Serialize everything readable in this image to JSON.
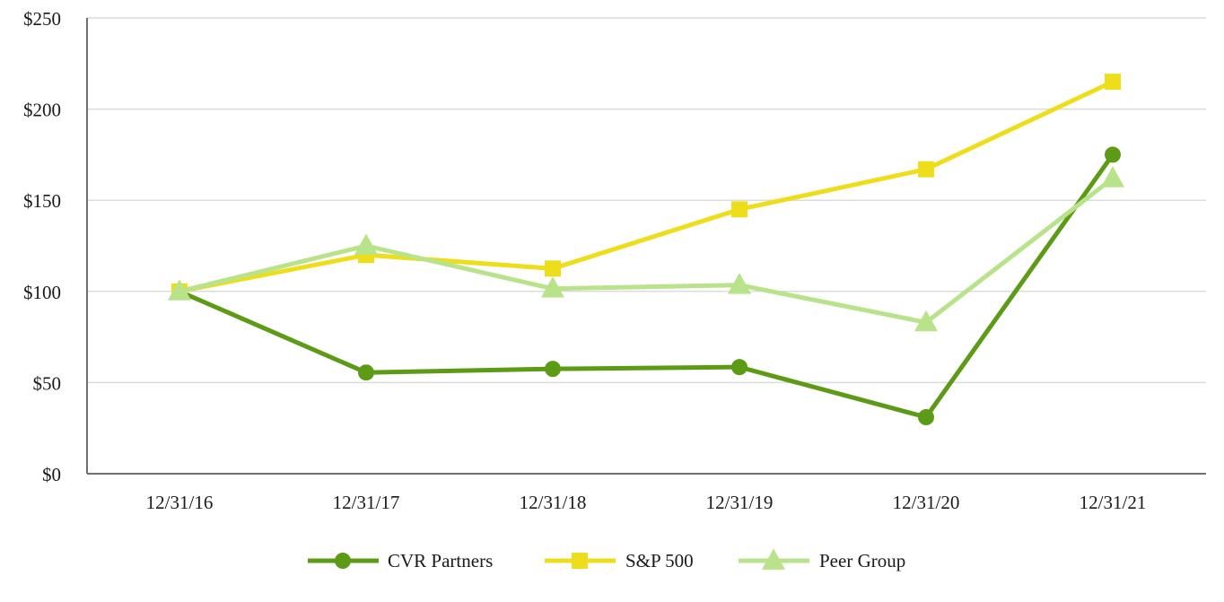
{
  "chart_data": {
    "type": "line",
    "title": "",
    "xlabel": "",
    "ylabel": "",
    "categories": [
      "12/31/16",
      "12/31/17",
      "12/31/18",
      "12/31/19",
      "12/31/20",
      "12/31/21"
    ],
    "ylim": [
      0,
      250
    ],
    "y_ticks": [
      0,
      50,
      100,
      150,
      200,
      250
    ],
    "y_tick_labels": [
      "$0",
      "$50",
      "$100",
      "$150",
      "$200",
      "$250"
    ],
    "grid": true,
    "legend_position": "bottom-center",
    "series": [
      {
        "name": "CVR Partners",
        "values": [
          100,
          55.5,
          57.5,
          58.5,
          31,
          175
        ],
        "color": "#5d9b16",
        "marker": "circle"
      },
      {
        "name": "S&P 500",
        "values": [
          100,
          120,
          112.5,
          145,
          167,
          215
        ],
        "color": "#eedd1a",
        "marker": "square"
      },
      {
        "name": "Peer Group",
        "values": [
          100,
          125,
          101.5,
          103.5,
          83,
          162
        ],
        "color": "#b9e38a",
        "marker": "triangle"
      }
    ]
  }
}
